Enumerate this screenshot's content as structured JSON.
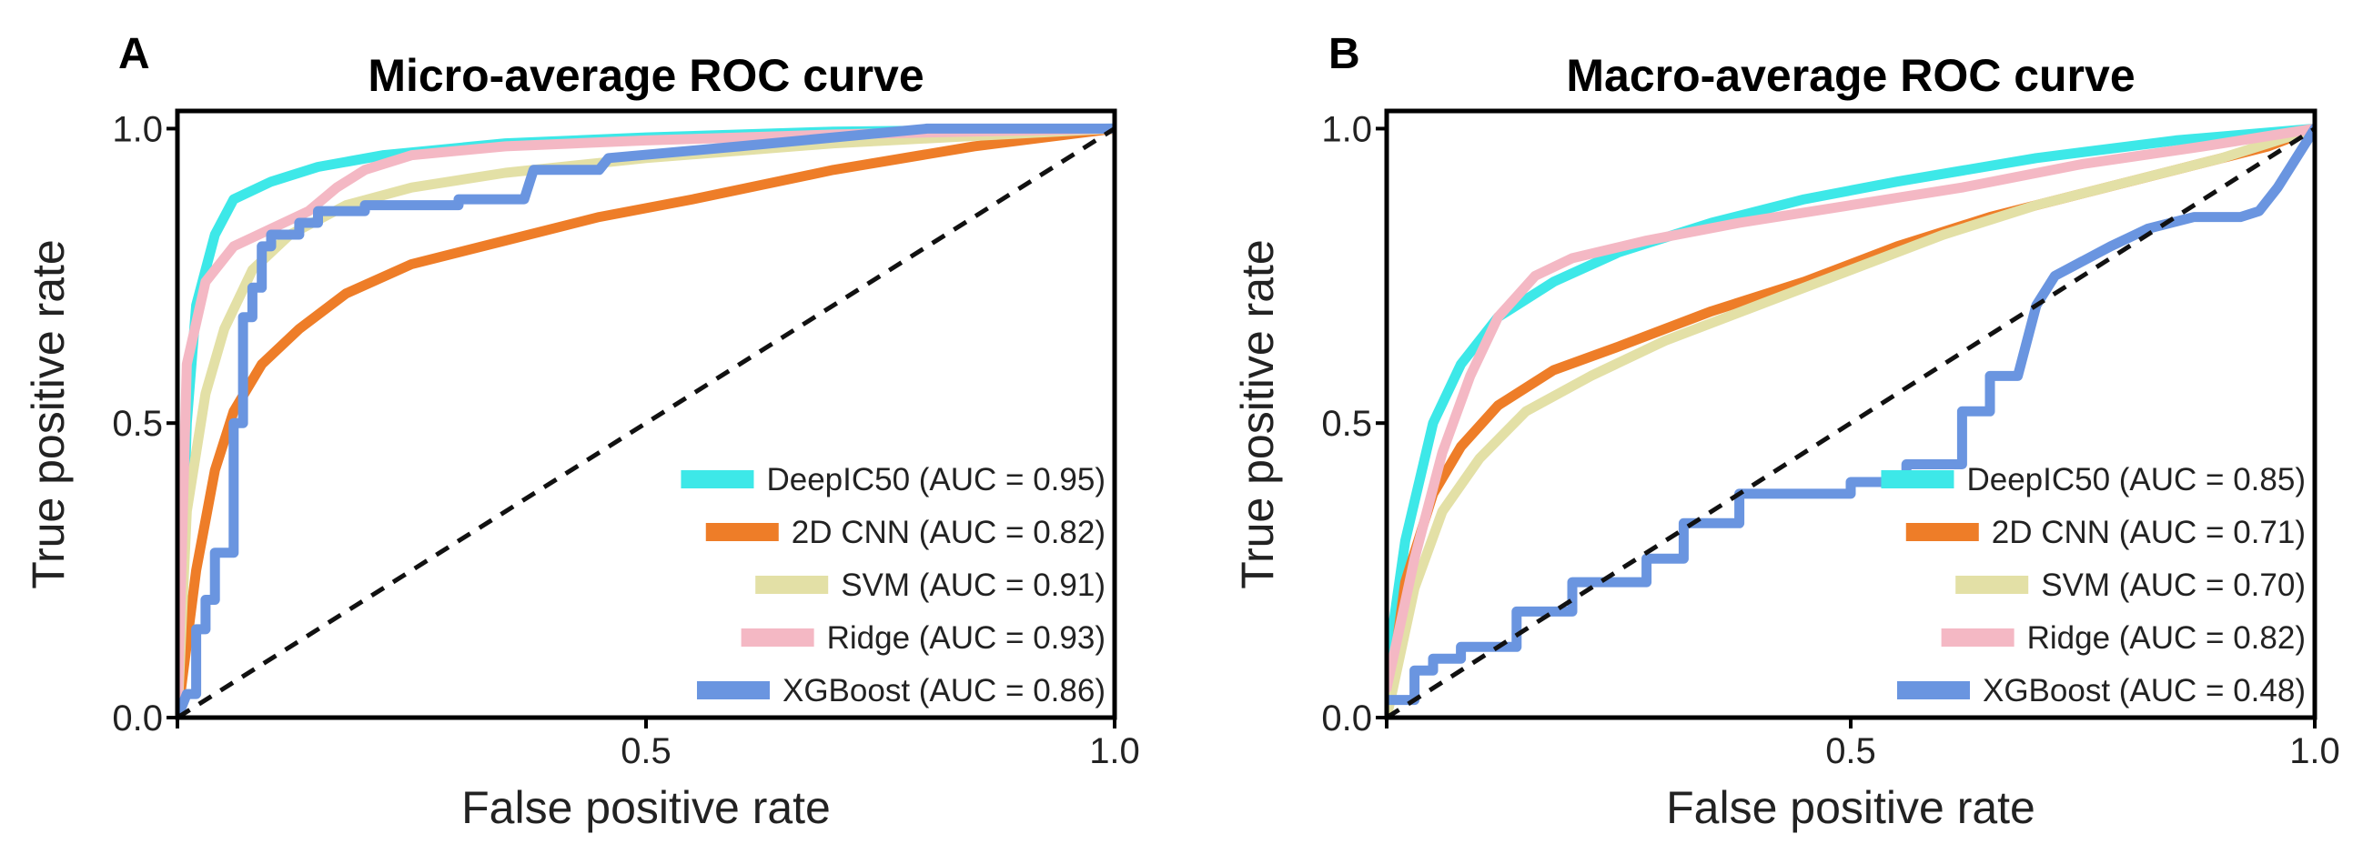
{
  "panels": [
    {
      "letter": "A",
      "chart_data": {
        "type": "line",
        "title": "Micro-average ROC curve",
        "xlabel": "False positive rate",
        "ylabel": "True positive rate",
        "xlim": [
          0,
          1.0
        ],
        "ylim": [
          0,
          1.03
        ],
        "xticks": [
          {
            "v": 0.5,
            "label": "0.5"
          },
          {
            "v": 1.0,
            "label": "1.0"
          }
        ],
        "yticks": [
          {
            "v": 0.0,
            "label": "0.0"
          },
          {
            "v": 0.5,
            "label": "0.5"
          },
          {
            "v": 1.0,
            "label": "1.0"
          }
        ],
        "legend_position": "bottom-right",
        "diagonal": [
          [
            0,
            0
          ],
          [
            1,
            1
          ]
        ],
        "series": [
          {
            "name": "DeepIC50 (AUC = 0.95)",
            "color": "#3de8e8",
            "points": [
              [
                0,
                0
              ],
              [
                0.01,
                0.5
              ],
              [
                0.02,
                0.7
              ],
              [
                0.04,
                0.82
              ],
              [
                0.06,
                0.88
              ],
              [
                0.1,
                0.91
              ],
              [
                0.15,
                0.935
              ],
              [
                0.22,
                0.955
              ],
              [
                0.35,
                0.975
              ],
              [
                0.5,
                0.985
              ],
              [
                0.7,
                0.995
              ],
              [
                1,
                1
              ]
            ]
          },
          {
            "name": "2D CNN (AUC = 0.82)",
            "color": "#ee7d28",
            "points": [
              [
                0,
                0
              ],
              [
                0.02,
                0.25
              ],
              [
                0.04,
                0.42
              ],
              [
                0.06,
                0.52
              ],
              [
                0.09,
                0.6
              ],
              [
                0.13,
                0.66
              ],
              [
                0.18,
                0.72
              ],
              [
                0.25,
                0.77
              ],
              [
                0.35,
                0.81
              ],
              [
                0.45,
                0.85
              ],
              [
                0.55,
                0.88
              ],
              [
                0.7,
                0.93
              ],
              [
                0.85,
                0.97
              ],
              [
                1,
                1
              ]
            ]
          },
          {
            "name": "SVM (AUC = 0.91)",
            "color": "#e3e0a6",
            "points": [
              [
                0,
                0
              ],
              [
                0.01,
                0.35
              ],
              [
                0.03,
                0.55
              ],
              [
                0.05,
                0.66
              ],
              [
                0.08,
                0.76
              ],
              [
                0.12,
                0.82
              ],
              [
                0.18,
                0.87
              ],
              [
                0.25,
                0.9
              ],
              [
                0.35,
                0.925
              ],
              [
                0.5,
                0.95
              ],
              [
                0.7,
                0.975
              ],
              [
                1,
                1
              ]
            ]
          },
          {
            "name": "Ridge (AUC = 0.93)",
            "color": "#f4b8c4",
            "points": [
              [
                0,
                0
              ],
              [
                0.01,
                0.6
              ],
              [
                0.03,
                0.74
              ],
              [
                0.06,
                0.8
              ],
              [
                0.1,
                0.83
              ],
              [
                0.14,
                0.86
              ],
              [
                0.17,
                0.9
              ],
              [
                0.2,
                0.93
              ],
              [
                0.25,
                0.955
              ],
              [
                0.35,
                0.97
              ],
              [
                0.5,
                0.98
              ],
              [
                0.7,
                0.99
              ],
              [
                1,
                1
              ]
            ]
          },
          {
            "name": "XGBoost (AUC = 0.86)",
            "color": "#6a95e0",
            "points": [
              [
                0,
                0
              ],
              [
                0.01,
                0.04
              ],
              [
                0.02,
                0.04
              ],
              [
                0.02,
                0.15
              ],
              [
                0.03,
                0.15
              ],
              [
                0.03,
                0.2
              ],
              [
                0.04,
                0.2
              ],
              [
                0.04,
                0.28
              ],
              [
                0.06,
                0.28
              ],
              [
                0.06,
                0.5
              ],
              [
                0.07,
                0.5
              ],
              [
                0.07,
                0.68
              ],
              [
                0.08,
                0.68
              ],
              [
                0.08,
                0.73
              ],
              [
                0.09,
                0.73
              ],
              [
                0.09,
                0.8
              ],
              [
                0.1,
                0.8
              ],
              [
                0.1,
                0.82
              ],
              [
                0.13,
                0.82
              ],
              [
                0.13,
                0.84
              ],
              [
                0.15,
                0.84
              ],
              [
                0.15,
                0.86
              ],
              [
                0.2,
                0.86
              ],
              [
                0.2,
                0.87
              ],
              [
                0.3,
                0.87
              ],
              [
                0.3,
                0.88
              ],
              [
                0.37,
                0.88
              ],
              [
                0.38,
                0.93
              ],
              [
                0.45,
                0.93
              ],
              [
                0.46,
                0.95
              ],
              [
                0.6,
                0.97
              ],
              [
                0.8,
                1
              ],
              [
                1,
                1
              ]
            ]
          }
        ]
      }
    },
    {
      "letter": "B",
      "chart_data": {
        "type": "line",
        "title": "Macro-average ROC curve",
        "xlabel": "False positive rate",
        "ylabel": "True positive rate",
        "xlim": [
          0,
          1.0
        ],
        "ylim": [
          0,
          1.03
        ],
        "xticks": [
          {
            "v": 0.5,
            "label": "0.5"
          },
          {
            "v": 1.0,
            "label": "1.0"
          }
        ],
        "yticks": [
          {
            "v": 0.0,
            "label": "0.0"
          },
          {
            "v": 0.5,
            "label": "0.5"
          },
          {
            "v": 1.0,
            "label": "1.0"
          }
        ],
        "legend_position": "bottom-right",
        "diagonal": [
          [
            0,
            0
          ],
          [
            1,
            1
          ]
        ],
        "series": [
          {
            "name": "DeepIC50 (AUC = 0.85)",
            "color": "#3de8e8",
            "points": [
              [
                0,
                0.08
              ],
              [
                0.02,
                0.3
              ],
              [
                0.05,
                0.5
              ],
              [
                0.08,
                0.6
              ],
              [
                0.12,
                0.68
              ],
              [
                0.18,
                0.74
              ],
              [
                0.25,
                0.79
              ],
              [
                0.35,
                0.84
              ],
              [
                0.45,
                0.88
              ],
              [
                0.55,
                0.91
              ],
              [
                0.7,
                0.95
              ],
              [
                0.85,
                0.98
              ],
              [
                1,
                1
              ]
            ]
          },
          {
            "name": "2D CNN (AUC = 0.71)",
            "color": "#ee7d28",
            "points": [
              [
                0,
                0
              ],
              [
                0.02,
                0.23
              ],
              [
                0.05,
                0.38
              ],
              [
                0.08,
                0.46
              ],
              [
                0.12,
                0.53
              ],
              [
                0.18,
                0.59
              ],
              [
                0.25,
                0.63
              ],
              [
                0.35,
                0.69
              ],
              [
                0.45,
                0.74
              ],
              [
                0.55,
                0.8
              ],
              [
                0.65,
                0.85
              ],
              [
                0.75,
                0.89
              ],
              [
                0.85,
                0.93
              ],
              [
                0.95,
                0.97
              ],
              [
                1,
                1
              ]
            ]
          },
          {
            "name": "SVM (AUC = 0.70)",
            "color": "#e3e0a6",
            "points": [
              [
                0,
                0
              ],
              [
                0.03,
                0.22
              ],
              [
                0.06,
                0.35
              ],
              [
                0.1,
                0.44
              ],
              [
                0.15,
                0.52
              ],
              [
                0.22,
                0.58
              ],
              [
                0.3,
                0.64
              ],
              [
                0.4,
                0.7
              ],
              [
                0.5,
                0.76
              ],
              [
                0.6,
                0.82
              ],
              [
                0.7,
                0.87
              ],
              [
                0.8,
                0.91
              ],
              [
                0.9,
                0.95
              ],
              [
                1,
                1
              ]
            ]
          },
          {
            "name": "Ridge (AUC = 0.82)",
            "color": "#f4b8c4",
            "points": [
              [
                0,
                0.05
              ],
              [
                0.03,
                0.27
              ],
              [
                0.06,
                0.45
              ],
              [
                0.09,
                0.58
              ],
              [
                0.12,
                0.68
              ],
              [
                0.16,
                0.75
              ],
              [
                0.2,
                0.78
              ],
              [
                0.28,
                0.81
              ],
              [
                0.38,
                0.84
              ],
              [
                0.5,
                0.87
              ],
              [
                0.62,
                0.9
              ],
              [
                0.75,
                0.94
              ],
              [
                0.88,
                0.97
              ],
              [
                1,
                1
              ]
            ]
          },
          {
            "name": "XGBoost (AUC = 0.48)",
            "color": "#6a95e0",
            "points": [
              [
                0,
                0.03
              ],
              [
                0.03,
                0.03
              ],
              [
                0.03,
                0.08
              ],
              [
                0.05,
                0.08
              ],
              [
                0.05,
                0.1
              ],
              [
                0.08,
                0.1
              ],
              [
                0.08,
                0.12
              ],
              [
                0.14,
                0.12
              ],
              [
                0.14,
                0.18
              ],
              [
                0.2,
                0.18
              ],
              [
                0.2,
                0.23
              ],
              [
                0.28,
                0.23
              ],
              [
                0.28,
                0.27
              ],
              [
                0.32,
                0.27
              ],
              [
                0.32,
                0.33
              ],
              [
                0.38,
                0.33
              ],
              [
                0.38,
                0.38
              ],
              [
                0.5,
                0.38
              ],
              [
                0.5,
                0.4
              ],
              [
                0.56,
                0.4
              ],
              [
                0.56,
                0.43
              ],
              [
                0.62,
                0.43
              ],
              [
                0.62,
                0.52
              ],
              [
                0.65,
                0.52
              ],
              [
                0.65,
                0.58
              ],
              [
                0.68,
                0.58
              ],
              [
                0.7,
                0.7
              ],
              [
                0.72,
                0.75
              ],
              [
                0.78,
                0.8
              ],
              [
                0.82,
                0.83
              ],
              [
                0.87,
                0.85
              ],
              [
                0.92,
                0.85
              ],
              [
                0.94,
                0.86
              ],
              [
                0.96,
                0.9
              ],
              [
                1,
                1
              ]
            ]
          }
        ]
      }
    }
  ]
}
